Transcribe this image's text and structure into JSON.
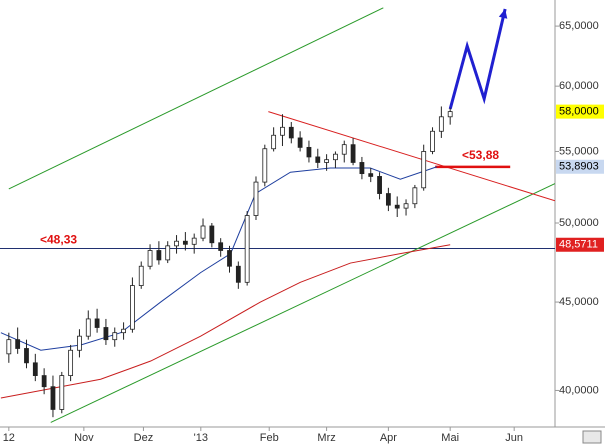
{
  "chart_data": {
    "type": "candlestick",
    "log_scale": true,
    "xlim": [
      -2,
      249.5
    ],
    "ylim": [
      38.2,
      67.3
    ],
    "xticks": [
      {
        "value": 2,
        "label": "12"
      },
      {
        "value": 36,
        "label": "Nov"
      },
      {
        "value": 63,
        "label": "Dez"
      },
      {
        "value": 89,
        "label": "'13"
      },
      {
        "value": 120,
        "label": "Feb"
      },
      {
        "value": 146,
        "label": "Mrz"
      },
      {
        "value": 174,
        "label": "Apr"
      },
      {
        "value": 202,
        "label": "Mai"
      },
      {
        "value": 231,
        "label": "Jun"
      }
    ],
    "yticks": [
      {
        "value": 40,
        "label": "40,0000"
      },
      {
        "value": 45,
        "label": "45,0000"
      },
      {
        "value": 50,
        "label": "50,0000"
      },
      {
        "value": 55,
        "label": "55,0000"
      },
      {
        "value": 60,
        "label": "60,0000"
      },
      {
        "value": 65,
        "label": "65,0000"
      }
    ],
    "candles": {
      "x": [
        2,
        6,
        10,
        14,
        18,
        22,
        26,
        30,
        34,
        38,
        42,
        46,
        50,
        54,
        58,
        62,
        66,
        70,
        74,
        78,
        82,
        86,
        90,
        94,
        98,
        102,
        106,
        110,
        114,
        118,
        122,
        126,
        130,
        134,
        138,
        142,
        146,
        150,
        154,
        158,
        162,
        166,
        170,
        174,
        178,
        182,
        186,
        190,
        194,
        198,
        202
      ],
      "open": [
        42.0,
        42.8,
        42.3,
        41.5,
        40.8,
        40.2,
        39.0,
        40.8,
        42.2,
        43.0,
        44.0,
        43.5,
        42.8,
        43.2,
        43.4,
        46.0,
        47.2,
        48.2,
        47.6,
        48.5,
        48.8,
        48.6,
        49.0,
        49.8,
        48.7,
        48.2,
        47.2,
        46.2,
        50.5,
        52.8,
        55.2,
        56.2,
        56.8,
        56.0,
        55.3,
        54.6,
        54.2,
        54.4,
        54.8,
        55.5,
        54.2,
        53.4,
        53.2,
        52.0,
        51.2,
        51.0,
        51.3,
        52.4,
        55.0,
        56.5,
        57.6
      ],
      "high": [
        43.2,
        43.5,
        42.8,
        42.0,
        41.2,
        40.8,
        41.0,
        42.5,
        43.4,
        44.5,
        44.6,
        44.0,
        43.5,
        43.8,
        46.5,
        47.5,
        48.6,
        48.8,
        48.8,
        49.2,
        49.4,
        49.3,
        50.3,
        50.0,
        49.0,
        48.5,
        47.5,
        50.8,
        53.2,
        55.5,
        56.8,
        57.8,
        57.2,
        56.5,
        55.8,
        55.2,
        54.8,
        55.0,
        55.8,
        56.0,
        54.6,
        53.8,
        53.5,
        52.4,
        51.8,
        51.6,
        52.6,
        55.5,
        56.8,
        58.4,
        58.3
      ],
      "low": [
        41.5,
        42.0,
        41.2,
        40.5,
        39.8,
        38.6,
        38.8,
        40.5,
        41.8,
        42.8,
        43.2,
        42.5,
        42.4,
        42.8,
        43.2,
        45.8,
        47.0,
        47.3,
        47.4,
        48.0,
        48.2,
        48.0,
        48.8,
        48.4,
        47.8,
        46.8,
        45.8,
        46.0,
        50.2,
        52.5,
        55.0,
        55.4,
        55.6,
        55.0,
        54.2,
        53.8,
        53.6,
        53.8,
        54.2,
        54.0,
        53.0,
        52.8,
        51.6,
        50.8,
        50.4,
        50.5,
        51.0,
        52.2,
        54.8,
        56.0,
        57.0
      ],
      "close": [
        42.8,
        42.3,
        41.5,
        40.8,
        40.2,
        39.0,
        40.8,
        42.2,
        43.0,
        44.0,
        43.5,
        42.8,
        43.2,
        43.4,
        46.0,
        47.2,
        48.2,
        47.6,
        48.5,
        48.8,
        48.6,
        49.0,
        49.8,
        48.7,
        48.2,
        47.2,
        46.2,
        50.5,
        52.8,
        55.2,
        56.2,
        56.8,
        56.0,
        55.3,
        54.6,
        54.2,
        54.4,
        54.8,
        55.5,
        54.2,
        53.4,
        53.2,
        52.0,
        51.2,
        51.0,
        51.3,
        52.4,
        55.0,
        56.5,
        57.6,
        58.0
      ]
    },
    "series": [
      {
        "color": "#1f3f9f",
        "x": [
          -1.6,
          16.5,
          34.6,
          52.7,
          70.8,
          88.9,
          102.5,
          113.8,
          129.6,
          147.7,
          165.8,
          179.4,
          196
        ],
        "values": [
          43.2,
          42.2,
          42.5,
          43.2,
          45.0,
          46.8,
          48.0,
          52.0,
          53.5,
          53.8,
          53.8,
          53.0,
          53.8903
        ]
      },
      {
        "color": "#c81e1e",
        "x": [
          -1.6,
          43.6,
          66.3,
          88.9,
          116,
          134.1,
          156.8,
          179.4,
          202
        ],
        "values": [
          39.6,
          40.6,
          41.6,
          43.0,
          45.0,
          46.2,
          47.4,
          48.0,
          48.5711
        ]
      }
    ],
    "trendlines": [
      {
        "color": "#2a9a2a",
        "x": [
          2,
          171.7
        ],
        "values": [
          52.32,
          66.6
        ]
      },
      {
        "color": "#2a9a2a",
        "x": [
          21,
          249.5
        ],
        "values": [
          38.33,
          52.7
        ]
      },
      {
        "color": "#d82020",
        "x": [
          119.6,
          249.5
        ],
        "values": [
          58.0,
          51.5
        ]
      },
      {
        "color": "#e01010",
        "x": [
          195.2,
          229.2
        ],
        "values": [
          53.88,
          53.88
        ]
      },
      {
        "color": "#2020d0",
        "x": [
          202,
          209.7,
          217.4,
          226.9
        ],
        "values": [
          58.2,
          63.3,
          59.0,
          66.5
        ]
      }
    ],
    "levels": [
      {
        "value": 48.33,
        "label": "<48,33",
        "color": "#203070"
      }
    ],
    "level_labels": [
      {
        "value": 53.88,
        "label": "<53,88"
      }
    ],
    "price_tags": [
      {
        "value": 58.0,
        "label": "58,0000",
        "color": "#ffff00",
        "text_color": "#000000"
      },
      {
        "value": 53.8903,
        "label": "53,8903",
        "color": "#c8d8f0",
        "text_color": "#000000"
      },
      {
        "value": 48.5711,
        "label": "48,5711",
        "color": "#e02020",
        "text_color": "#ffffff"
      }
    ],
    "up_color": "#ffffff",
    "down_color": "#222222"
  }
}
